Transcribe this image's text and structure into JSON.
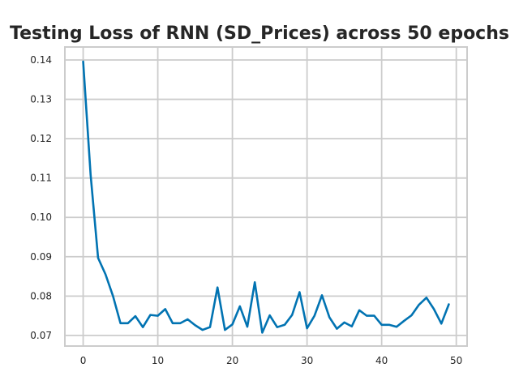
{
  "chart_data": {
    "type": "line",
    "title": "Testing Loss of RNN (SD_Prices) across 50 epochs",
    "xlabel": "",
    "ylabel": "",
    "xlim": [
      -2.45,
      51.45
    ],
    "ylim": [
      0.0673,
      0.1433
    ],
    "xticks": [
      0,
      10,
      20,
      30,
      40,
      50
    ],
    "yticks": [
      0.07,
      0.08,
      0.09,
      0.1,
      0.11,
      0.12,
      0.13,
      0.14
    ],
    "xtick_labels": [
      "0",
      "10",
      "20",
      "30",
      "40",
      "50"
    ],
    "ytick_labels": [
      "0.07",
      "0.08",
      "0.09",
      "0.10",
      "0.11",
      "0.12",
      "0.13",
      "0.14"
    ],
    "grid": true,
    "series": [
      {
        "name": "Testing Loss",
        "color": "#0173b2",
        "x": [
          0,
          1,
          2,
          3,
          4,
          5,
          6,
          7,
          8,
          9,
          10,
          11,
          12,
          13,
          14,
          15,
          16,
          17,
          18,
          19,
          20,
          21,
          22,
          23,
          24,
          25,
          26,
          27,
          28,
          29,
          30,
          31,
          32,
          33,
          34,
          35,
          36,
          37,
          38,
          39,
          40,
          41,
          42,
          43,
          44,
          45,
          46,
          47,
          48,
          49
        ],
        "values": [
          0.1396,
          0.1108,
          0.0897,
          0.0855,
          0.08,
          0.0731,
          0.0731,
          0.0749,
          0.0721,
          0.0752,
          0.075,
          0.0767,
          0.0731,
          0.0731,
          0.0741,
          0.0726,
          0.0714,
          0.0721,
          0.0822,
          0.0714,
          0.0728,
          0.0774,
          0.0722,
          0.0835,
          0.0707,
          0.0751,
          0.0721,
          0.0727,
          0.0752,
          0.081,
          0.0718,
          0.075,
          0.0802,
          0.0746,
          0.0717,
          0.0733,
          0.0723,
          0.0764,
          0.075,
          0.075,
          0.0727,
          0.0727,
          0.0722,
          0.0737,
          0.0751,
          0.0778,
          0.0796,
          0.0767,
          0.073,
          0.0779
        ]
      }
    ]
  }
}
